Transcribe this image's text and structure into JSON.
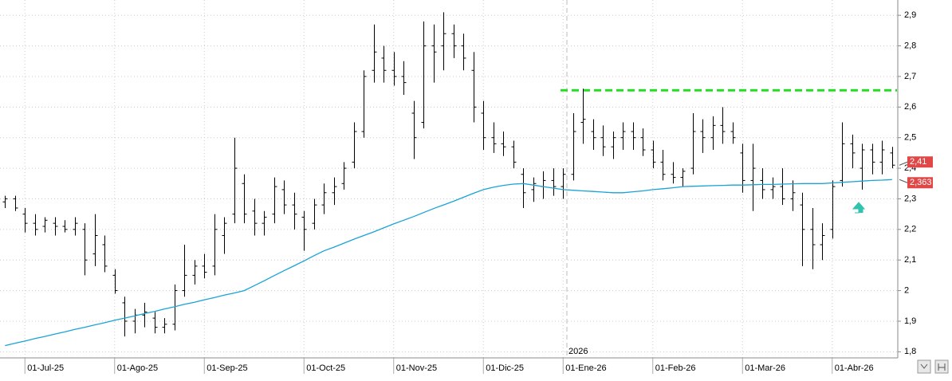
{
  "chart_data": {
    "type": "ohlc",
    "year_marker": "2026",
    "categories": [
      null,
      null,
      "01-Jul-25",
      null,
      null,
      null,
      null,
      null,
      null,
      null,
      null,
      "01-Ago-25",
      null,
      null,
      null,
      null,
      null,
      null,
      null,
      null,
      "01-Sep-25",
      null,
      null,
      null,
      null,
      null,
      null,
      null,
      null,
      null,
      "01-Oct-25",
      null,
      null,
      null,
      null,
      null,
      null,
      null,
      null,
      "01-Nov-25",
      null,
      null,
      null,
      null,
      null,
      null,
      null,
      null,
      "01-Dic-25",
      null,
      null,
      null,
      null,
      null,
      null,
      null,
      "01-Ene-26",
      null,
      null,
      null,
      null,
      null,
      null,
      null,
      null,
      "01-Feb-26",
      null,
      null,
      null,
      null,
      null,
      null,
      null,
      null,
      "01-Mar-26",
      null,
      null,
      null,
      null,
      null,
      null,
      null,
      null,
      "01-Abr-26",
      null,
      null,
      null,
      null,
      null,
      null
    ],
    "ohlc": [
      [
        2.29,
        2.31,
        2.27,
        2.3
      ],
      [
        2.3,
        2.31,
        2.26,
        2.27
      ],
      [
        2.25,
        2.27,
        2.19,
        2.22
      ],
      [
        2.22,
        2.25,
        2.18,
        2.2
      ],
      [
        2.21,
        2.24,
        2.19,
        2.23
      ],
      [
        2.22,
        2.24,
        2.18,
        2.21
      ],
      [
        2.21,
        2.23,
        2.19,
        2.2
      ],
      [
        2.2,
        2.24,
        2.18,
        2.22
      ],
      [
        2.2,
        2.22,
        2.05,
        2.1
      ],
      [
        2.12,
        2.25,
        2.08,
        2.18
      ],
      [
        2.15,
        2.18,
        2.06,
        2.08
      ],
      [
        2.05,
        2.07,
        1.99,
        2.0
      ],
      [
        1.96,
        1.98,
        1.85,
        1.9
      ],
      [
        1.9,
        1.94,
        1.86,
        1.92
      ],
      [
        1.92,
        1.96,
        1.88,
        1.93
      ],
      [
        1.91,
        1.93,
        1.86,
        1.88
      ],
      [
        1.88,
        1.91,
        1.86,
        1.89
      ],
      [
        1.89,
        2.02,
        1.87,
        2.0
      ],
      [
        2.0,
        2.15,
        1.98,
        2.05
      ],
      [
        2.05,
        2.1,
        2.02,
        2.08
      ],
      [
        2.08,
        2.12,
        2.04,
        2.06
      ],
      [
        2.08,
        2.25,
        2.05,
        2.2
      ],
      [
        2.18,
        2.24,
        2.12,
        2.22
      ],
      [
        2.25,
        2.5,
        2.22,
        2.4
      ],
      [
        2.35,
        2.38,
        2.22,
        2.25
      ],
      [
        2.26,
        2.3,
        2.18,
        2.22
      ],
      [
        2.22,
        2.26,
        2.18,
        2.24
      ],
      [
        2.25,
        2.37,
        2.22,
        2.34
      ],
      [
        2.33,
        2.36,
        2.25,
        2.28
      ],
      [
        2.28,
        2.32,
        2.2,
        2.25
      ],
      [
        2.24,
        2.26,
        2.13,
        2.2
      ],
      [
        2.22,
        2.3,
        2.2,
        2.28
      ],
      [
        2.28,
        2.35,
        2.25,
        2.32
      ],
      [
        2.32,
        2.37,
        2.28,
        2.34
      ],
      [
        2.35,
        2.42,
        2.33,
        2.4
      ],
      [
        2.42,
        2.55,
        2.4,
        2.52
      ],
      [
        2.52,
        2.72,
        2.5,
        2.7
      ],
      [
        2.72,
        2.87,
        2.68,
        2.78
      ],
      [
        2.76,
        2.8,
        2.68,
        2.72
      ],
      [
        2.72,
        2.78,
        2.67,
        2.7
      ],
      [
        2.7,
        2.75,
        2.64,
        2.68
      ],
      [
        2.58,
        2.62,
        2.43,
        2.5
      ],
      [
        2.55,
        2.88,
        2.53,
        2.8
      ],
      [
        2.8,
        2.87,
        2.68,
        2.78
      ],
      [
        2.8,
        2.91,
        2.72,
        2.84
      ],
      [
        2.84,
        2.87,
        2.76,
        2.8
      ],
      [
        2.8,
        2.84,
        2.72,
        2.76
      ],
      [
        2.72,
        2.78,
        2.55,
        2.6
      ],
      [
        2.58,
        2.62,
        2.46,
        2.5
      ],
      [
        2.5,
        2.55,
        2.45,
        2.48
      ],
      [
        2.48,
        2.52,
        2.44,
        2.47
      ],
      [
        2.47,
        2.49,
        2.4,
        2.42
      ],
      [
        2.38,
        2.4,
        2.27,
        2.32
      ],
      [
        2.33,
        2.37,
        2.29,
        2.35
      ],
      [
        2.34,
        2.39,
        2.3,
        2.36
      ],
      [
        2.36,
        2.4,
        2.31,
        2.34
      ],
      [
        2.34,
        2.4,
        2.3,
        2.38
      ],
      [
        2.38,
        2.58,
        2.36,
        2.52
      ],
      [
        2.55,
        2.66,
        2.48,
        2.56
      ],
      [
        2.52,
        2.56,
        2.46,
        2.5
      ],
      [
        2.5,
        2.54,
        2.44,
        2.47
      ],
      [
        2.47,
        2.52,
        2.43,
        2.5
      ],
      [
        2.5,
        2.55,
        2.46,
        2.52
      ],
      [
        2.52,
        2.55,
        2.46,
        2.5
      ],
      [
        2.5,
        2.53,
        2.44,
        2.46
      ],
      [
        2.46,
        2.49,
        2.4,
        2.42
      ],
      [
        2.42,
        2.46,
        2.36,
        2.38
      ],
      [
        2.38,
        2.42,
        2.35,
        2.37
      ],
      [
        2.37,
        2.4,
        2.34,
        2.39
      ],
      [
        2.4,
        2.58,
        2.38,
        2.52
      ],
      [
        2.52,
        2.56,
        2.45,
        2.5
      ],
      [
        2.5,
        2.57,
        2.46,
        2.54
      ],
      [
        2.54,
        2.6,
        2.48,
        2.52
      ],
      [
        2.52,
        2.55,
        2.48,
        2.5
      ],
      [
        2.45,
        2.48,
        2.32,
        2.36
      ],
      [
        2.36,
        2.48,
        2.26,
        2.4
      ],
      [
        2.36,
        2.4,
        2.3,
        2.33
      ],
      [
        2.33,
        2.37,
        2.3,
        2.34
      ],
      [
        2.34,
        2.4,
        2.28,
        2.3
      ],
      [
        2.3,
        2.36,
        2.26,
        2.32
      ],
      [
        2.28,
        2.32,
        2.08,
        2.2
      ],
      [
        2.2,
        2.27,
        2.07,
        2.15
      ],
      [
        2.15,
        2.22,
        2.1,
        2.18
      ],
      [
        2.2,
        2.36,
        2.17,
        2.34
      ],
      [
        2.36,
        2.55,
        2.34,
        2.48
      ],
      [
        2.48,
        2.51,
        2.4,
        2.45
      ],
      [
        2.4,
        2.48,
        2.33,
        2.46
      ],
      [
        2.46,
        2.48,
        2.38,
        2.42
      ],
      [
        2.42,
        2.49,
        2.38,
        2.46
      ],
      [
        2.45,
        2.47,
        2.4,
        2.41
      ]
    ],
    "ohlc_color": "#000000",
    "moving_average": {
      "color": "#1aa3d6",
      "values": [
        1.82,
        1.828,
        1.835,
        1.843,
        1.85,
        1.858,
        1.865,
        1.873,
        1.88,
        1.888,
        1.895,
        1.903,
        1.91,
        1.917,
        1.925,
        1.932,
        1.94,
        1.947,
        1.955,
        1.962,
        1.97,
        1.977,
        1.985,
        1.992,
        2.0,
        2.016,
        2.032,
        2.049,
        2.065,
        2.081,
        2.097,
        2.114,
        2.13,
        2.142,
        2.155,
        2.168,
        2.18,
        2.192,
        2.205,
        2.218,
        2.23,
        2.242,
        2.255,
        2.268,
        2.28,
        2.292,
        2.305,
        2.318,
        2.33,
        2.338,
        2.344,
        2.348,
        2.35,
        2.345,
        2.34,
        2.335,
        2.33,
        2.328,
        2.326,
        2.324,
        2.322,
        2.32,
        2.32,
        2.323,
        2.326,
        2.33,
        2.333,
        2.336,
        2.34,
        2.341,
        2.342,
        2.343,
        2.344,
        2.345,
        2.345,
        2.346,
        2.347,
        2.347,
        2.348,
        2.349,
        2.35,
        2.35,
        2.35,
        2.352,
        2.354,
        2.356,
        2.358,
        2.36,
        2.361,
        2.363
      ]
    },
    "resistance": {
      "value": 2.655,
      "color": "#22dd22"
    },
    "price_labels": [
      {
        "value": 2.41,
        "label": "2,41",
        "color": "#e04848"
      },
      {
        "value": 2.363,
        "label": "2,363",
        "color": "#e04848"
      }
    ],
    "ylim": [
      1.78,
      2.95
    ],
    "yticks": [
      {
        "value": 1.8,
        "label": "1,8"
      },
      {
        "value": 1.9,
        "label": "1,9"
      },
      {
        "value": 2.0,
        "label": "2"
      },
      {
        "value": 2.1,
        "label": "2,1"
      },
      {
        "value": 2.2,
        "label": "2,2"
      },
      {
        "value": 2.3,
        "label": "2,3"
      },
      {
        "value": 2.4,
        "label": "2,4"
      },
      {
        "value": 2.5,
        "label": "2,5"
      },
      {
        "value": 2.6,
        "label": "2,6"
      },
      {
        "value": 2.7,
        "label": "2,7"
      },
      {
        "value": 2.8,
        "label": "2,8"
      },
      {
        "value": 2.9,
        "label": "2,9"
      }
    ],
    "grid": true
  }
}
